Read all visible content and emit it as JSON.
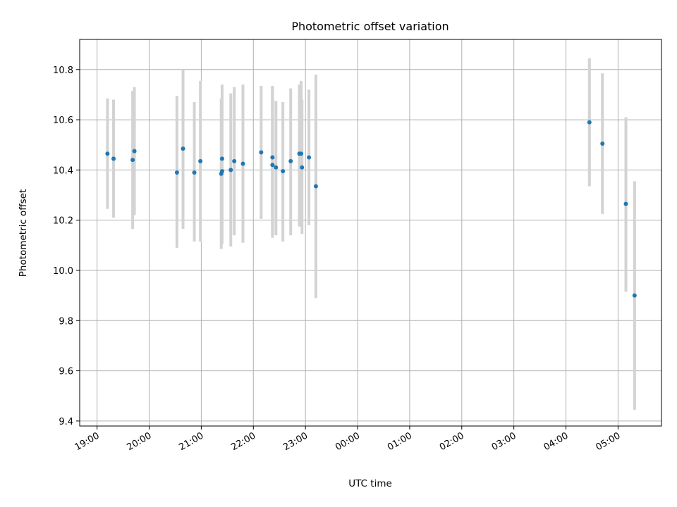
{
  "chart_data": {
    "type": "scatter",
    "title": "Photometric offset variation",
    "xlabel": "UTC time",
    "ylabel": "Photometric offset",
    "grid": true,
    "xlim": [
      "18:40",
      "05:50"
    ],
    "ylim": [
      9.38,
      10.92
    ],
    "x_ticks": [
      "19:00",
      "20:00",
      "21:00",
      "22:00",
      "23:00",
      "00:00",
      "01:00",
      "02:00",
      "03:00",
      "04:00",
      "05:00"
    ],
    "y_ticks": [
      "9.4",
      "9.6",
      "9.8",
      "10.0",
      "10.2",
      "10.4",
      "10.6",
      "10.8"
    ],
    "y_tick_values": [
      9.4,
      9.6,
      9.8,
      10.0,
      10.2,
      10.4,
      10.6,
      10.8
    ],
    "point_color": "#1f77b4",
    "errorbar_color": "#d3d3d3",
    "points": [
      {
        "x": "19:12",
        "y": 10.465,
        "err_low": 10.245,
        "err_high": 10.685
      },
      {
        "x": "19:19",
        "y": 10.445,
        "err_low": 10.21,
        "err_high": 10.68
      },
      {
        "x": "19:41",
        "y": 10.44,
        "err_low": 10.165,
        "err_high": 10.715
      },
      {
        "x": "19:43",
        "y": 10.475,
        "err_low": 10.22,
        "err_high": 10.73
      },
      {
        "x": "20:32",
        "y": 10.39,
        "err_low": 10.09,
        "err_high": 10.695
      },
      {
        "x": "20:39",
        "y": 10.485,
        "err_low": 10.165,
        "err_high": 10.8
      },
      {
        "x": "20:52",
        "y": 10.39,
        "err_low": 10.115,
        "err_high": 10.67
      },
      {
        "x": "20:59",
        "y": 10.435,
        "err_low": 10.115,
        "err_high": 10.755
      },
      {
        "x": "21:23",
        "y": 10.385,
        "err_low": 10.085,
        "err_high": 10.685
      },
      {
        "x": "21:24",
        "y": 10.395,
        "err_low": 10.105,
        "err_high": 10.68
      },
      {
        "x": "21:24",
        "y": 10.445,
        "err_low": 10.15,
        "err_high": 10.74
      },
      {
        "x": "21:34",
        "y": 10.4,
        "err_low": 10.095,
        "err_high": 10.705
      },
      {
        "x": "21:38",
        "y": 10.435,
        "err_low": 10.14,
        "err_high": 10.73
      },
      {
        "x": "21:48",
        "y": 10.425,
        "err_low": 10.11,
        "err_high": 10.74
      },
      {
        "x": "22:09",
        "y": 10.47,
        "err_low": 10.205,
        "err_high": 10.735
      },
      {
        "x": "22:22",
        "y": 10.42,
        "err_low": 10.13,
        "err_high": 10.735
      },
      {
        "x": "22:22",
        "y": 10.45,
        "err_low": 10.16,
        "err_high": 10.73
      },
      {
        "x": "22:26",
        "y": 10.41,
        "err_low": 10.14,
        "err_high": 10.675
      },
      {
        "x": "22:34",
        "y": 10.395,
        "err_low": 10.115,
        "err_high": 10.67
      },
      {
        "x": "22:43",
        "y": 10.435,
        "err_low": 10.14,
        "err_high": 10.725
      },
      {
        "x": "22:53",
        "y": 10.465,
        "err_low": 10.175,
        "err_high": 10.74
      },
      {
        "x": "22:55",
        "y": 10.465,
        "err_low": 10.175,
        "err_high": 10.755
      },
      {
        "x": "22:56",
        "y": 10.41,
        "err_low": 10.145,
        "err_high": 10.68
      },
      {
        "x": "23:04",
        "y": 10.45,
        "err_low": 10.18,
        "err_high": 10.72
      },
      {
        "x": "23:12",
        "y": 10.335,
        "err_low": 9.89,
        "err_high": 10.78
      },
      {
        "x": "04:27",
        "y": 10.59,
        "err_low": 10.335,
        "err_high": 10.845
      },
      {
        "x": "04:42",
        "y": 10.505,
        "err_low": 10.225,
        "err_high": 10.785
      },
      {
        "x": "05:09",
        "y": 10.265,
        "err_low": 9.915,
        "err_high": 10.61
      },
      {
        "x": "05:19",
        "y": 9.9,
        "err_low": 9.445,
        "err_high": 10.355
      }
    ]
  }
}
